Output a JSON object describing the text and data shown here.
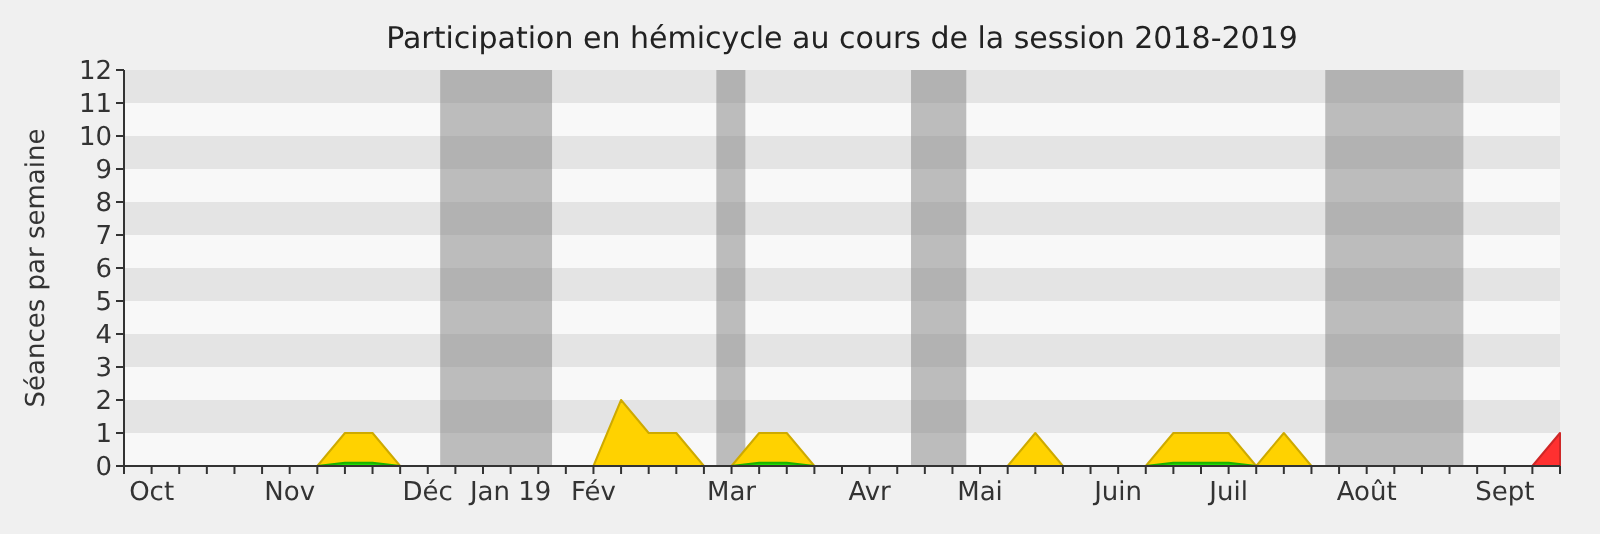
{
  "chart_data": {
    "type": "area",
    "title": "Participation en hémicycle au cours de la session 2018-2019",
    "ylabel": "Séances par semaine",
    "categories": [
      null,
      "Oct",
      null,
      null,
      null,
      null,
      "Nov",
      null,
      null,
      null,
      null,
      "Déc",
      null,
      null,
      "Jan 19",
      null,
      null,
      "Fév",
      null,
      null,
      null,
      null,
      "Mar",
      null,
      null,
      null,
      null,
      "Avr",
      null,
      null,
      null,
      "Mai",
      null,
      null,
      null,
      null,
      "Juin",
      null,
      null,
      null,
      "Juil",
      null,
      null,
      null,
      null,
      "Août",
      null,
      null,
      null,
      null,
      "Sept",
      null,
      null
    ],
    "series": [
      {
        "color": "#ffd200",
        "values": [
          0,
          0,
          0,
          0,
          0,
          0,
          0,
          0,
          1,
          1,
          0,
          0,
          0,
          0,
          0,
          0,
          0,
          0,
          2,
          1,
          1,
          0,
          0,
          1,
          1,
          0,
          0,
          0,
          0,
          0,
          0,
          0,
          0,
          1,
          0,
          0,
          0,
          0,
          1,
          1,
          1,
          0,
          1,
          0,
          0,
          0,
          0,
          0,
          0,
          0,
          0,
          0,
          0
        ]
      },
      {
        "color": "#22dd00",
        "values": [
          0,
          0,
          0,
          0,
          0,
          0,
          0,
          0,
          0.1,
          0.1,
          0,
          0,
          0,
          0,
          0,
          0,
          0,
          0,
          0,
          0,
          0,
          0,
          0,
          0.1,
          0.1,
          0,
          0,
          0,
          0,
          0,
          0,
          0,
          0,
          0,
          0,
          0,
          0,
          0,
          0.1,
          0.1,
          0.1,
          0,
          0,
          0,
          0,
          0,
          0,
          0,
          0,
          0,
          0,
          0,
          0
        ]
      },
      {
        "color": "#ff3030",
        "values": [
          0,
          0,
          0,
          0,
          0,
          0,
          0,
          0,
          0,
          0,
          0,
          0,
          0,
          0,
          0,
          0,
          0,
          0,
          0,
          0,
          0,
          0,
          0,
          0,
          0,
          0,
          0,
          0,
          0,
          0,
          0,
          0,
          0,
          0,
          0,
          0,
          0,
          0,
          0,
          0,
          0,
          0,
          0,
          0,
          0,
          0,
          0,
          0,
          0,
          0,
          0,
          0,
          1
        ]
      }
    ],
    "ylim": [
      0,
      12
    ],
    "yticks": [
      0,
      1,
      2,
      3,
      4,
      5,
      6,
      7,
      8,
      9,
      10,
      11,
      12
    ]
  }
}
